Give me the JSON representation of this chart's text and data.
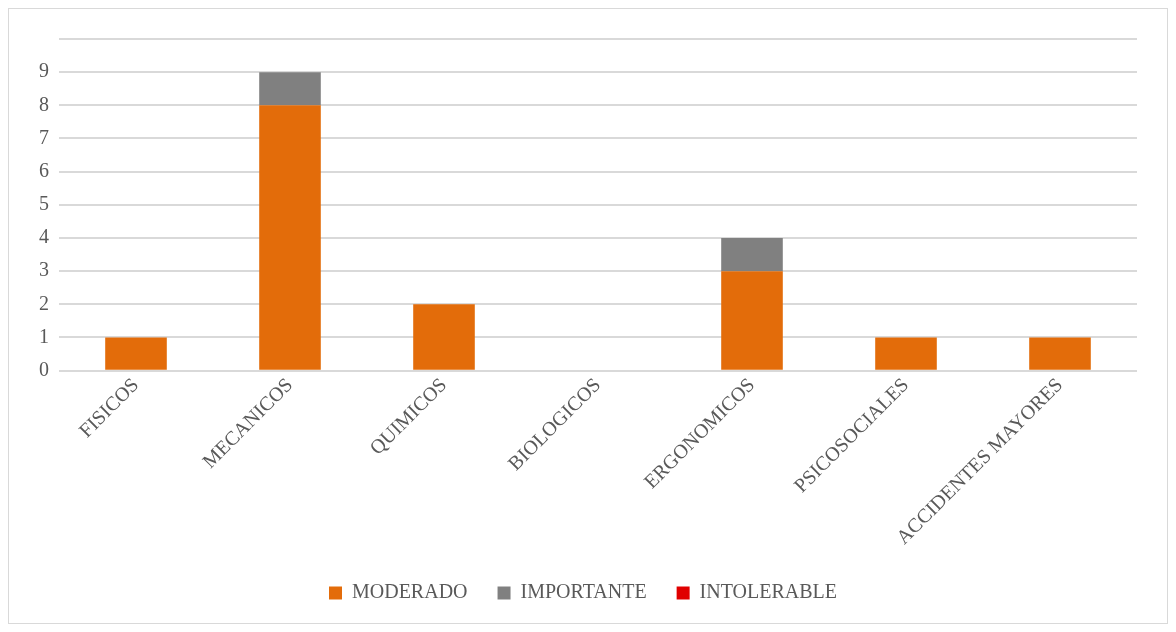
{
  "chart_data": {
    "type": "bar",
    "stacked": true,
    "categories": [
      "FISICOS",
      "MECANICOS",
      "QUIMICOS",
      "BIOLOGICOS",
      "ERGONOMICOS",
      "PSICOSOCIALES",
      "ACCIDENTES MAYORES"
    ],
    "series": [
      {
        "name": "MODERADO",
        "color": "#e36c0a",
        "values": [
          1,
          8,
          2,
          0,
          3,
          1,
          1
        ]
      },
      {
        "name": "IMPORTANTE",
        "color": "#808080",
        "values": [
          0,
          1,
          0,
          0,
          1,
          0,
          0
        ]
      },
      {
        "name": "INTOLERABLE",
        "color": "#e00000",
        "values": [
          0,
          0,
          0,
          0,
          0,
          0,
          0
        ]
      }
    ],
    "ylim": [
      0,
      10
    ],
    "yticks": [
      0,
      1,
      2,
      3,
      4,
      5,
      6,
      7,
      8,
      9,
      {
        "value": 10,
        "label": null
      }
    ],
    "grid": "y",
    "legend": "bottom"
  }
}
